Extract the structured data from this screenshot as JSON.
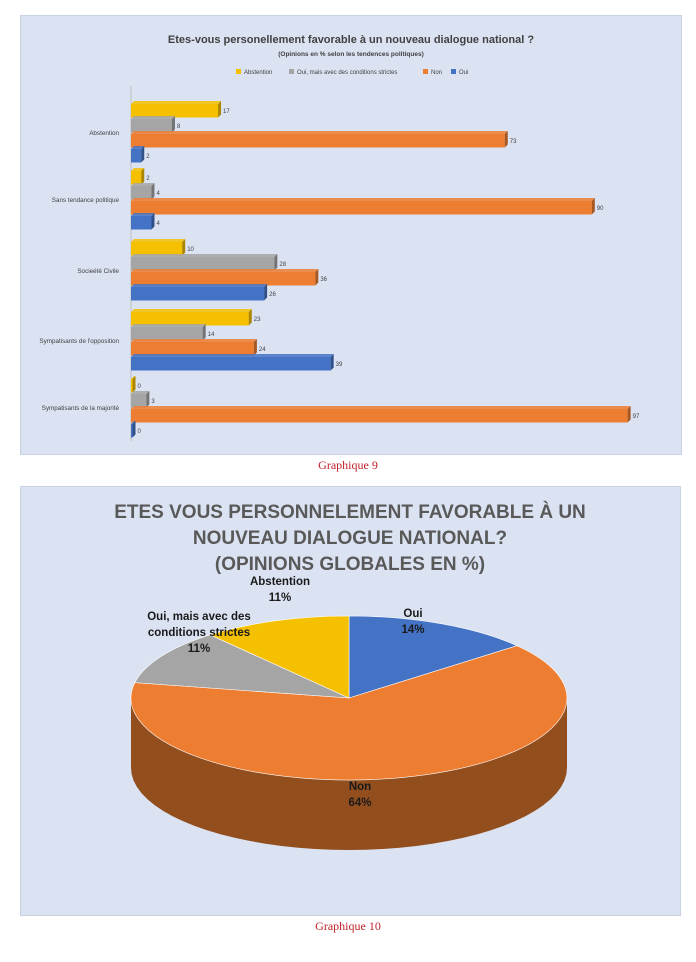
{
  "chart_data": [
    {
      "type": "bar",
      "orientation": "horizontal",
      "title": "Etes-vous personellement favorable à un nouveau dialogue national ?",
      "subtitle": "(Opinions en % selon les tendences politiques)",
      "categories": [
        "Abstention",
        "Sans tendance politique",
        "Socieété Civile",
        "Sympatisants de l'opposition",
        "Sympatisants de la majorité"
      ],
      "series": [
        {
          "name": "Abstention",
          "color": "#f5c000",
          "values": [
            17,
            2,
            10,
            23,
            0
          ]
        },
        {
          "name": "Oui, mais avec des conditions strictes",
          "color": "#a5a5a5",
          "values": [
            8,
            4,
            28,
            14,
            3
          ]
        },
        {
          "name": "Non",
          "color": "#ed7d31",
          "values": [
            73,
            90,
            36,
            24,
            97
          ]
        },
        {
          "name": "Oui",
          "color": "#4472c4",
          "values": [
            2,
            4,
            26,
            39,
            0
          ]
        }
      ],
      "legend": "top",
      "xlim": [
        0,
        100
      ],
      "grid": false,
      "caption": "Graphique 9"
    },
    {
      "type": "pie",
      "title_lines": [
        "ETES VOUS PERSONNELEMENT FAVORABLE À UN",
        "NOUVEAU DIALOGUE NATIONAL?",
        "(OPINIONS GLOBALES EN %)"
      ],
      "slices": [
        {
          "name": "Oui",
          "value": 14,
          "label": "14%",
          "color": "#4472c4"
        },
        {
          "name": "Non",
          "value": 64,
          "label": "64%",
          "color": "#ed7d31"
        },
        {
          "name": "Oui, mais avec des conditions stricte",
          "value": 11,
          "label": "11%",
          "color": "#a5a5a5"
        },
        {
          "name": "Abstention",
          "value": 11,
          "label": "11%",
          "color": "#f5c000"
        }
      ],
      "label_lines": {
        "oui": [
          "Oui",
          "14%"
        ],
        "non": [
          "Non",
          "64%"
        ],
        "conditions": [
          "Oui, mais avec des",
          "conditions strictes",
          "11%"
        ],
        "abstention": [
          "Abstention",
          "11%"
        ]
      },
      "style": "3d",
      "caption": "Graphique 10"
    }
  ]
}
